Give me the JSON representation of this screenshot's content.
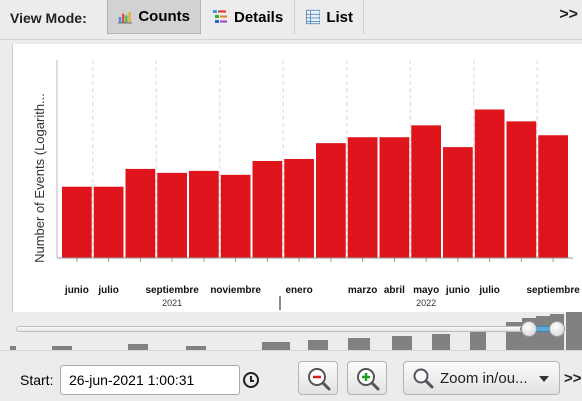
{
  "toolbar": {
    "view_mode_label": "View Mode:",
    "buttons": [
      {
        "label": "Counts",
        "icon": "bar-chart-icon",
        "active": true
      },
      {
        "label": "Details",
        "icon": "details-tree-icon",
        "active": false
      },
      {
        "label": "List",
        "icon": "list-table-icon",
        "active": false
      }
    ],
    "overflow": ">>"
  },
  "chart_data": {
    "type": "bar",
    "ylabel": "Number of Events (Logarith...",
    "y_scale": "log",
    "y_ticks_shown": false,
    "grid": "vertical dashed",
    "bar_color": "#e0141c",
    "categories": [
      "2021-06",
      "2021-07",
      "2021-08",
      "2021-09",
      "2021-10",
      "2021-11",
      "2021-12",
      "2022-01",
      "2022-02",
      "2022-03",
      "2022-04",
      "2022-05",
      "2022-06",
      "2022-07",
      "2022-08",
      "2022-09"
    ],
    "month_labels": [
      "junio",
      "julio",
      "",
      "septiembre",
      "",
      "noviembre",
      "",
      "enero",
      "",
      "marzo",
      "abril",
      "mayo",
      "junio",
      "julio",
      "",
      "septiembre"
    ],
    "values": [
      0.36,
      0.36,
      0.45,
      0.43,
      0.44,
      0.42,
      0.49,
      0.5,
      0.58,
      0.61,
      0.61,
      0.67,
      0.56,
      0.75,
      0.69,
      0.62
    ],
    "year_labels": [
      "2021",
      "2022"
    ]
  },
  "slider": {
    "min": 0,
    "max": 1,
    "low": 0.962,
    "high": 1.0
  },
  "start": {
    "label": "Start:",
    "value": "26-jun-2021 1:00:31"
  },
  "zoom": {
    "label": "Zoom in/ou...",
    "overflow": ">>"
  }
}
